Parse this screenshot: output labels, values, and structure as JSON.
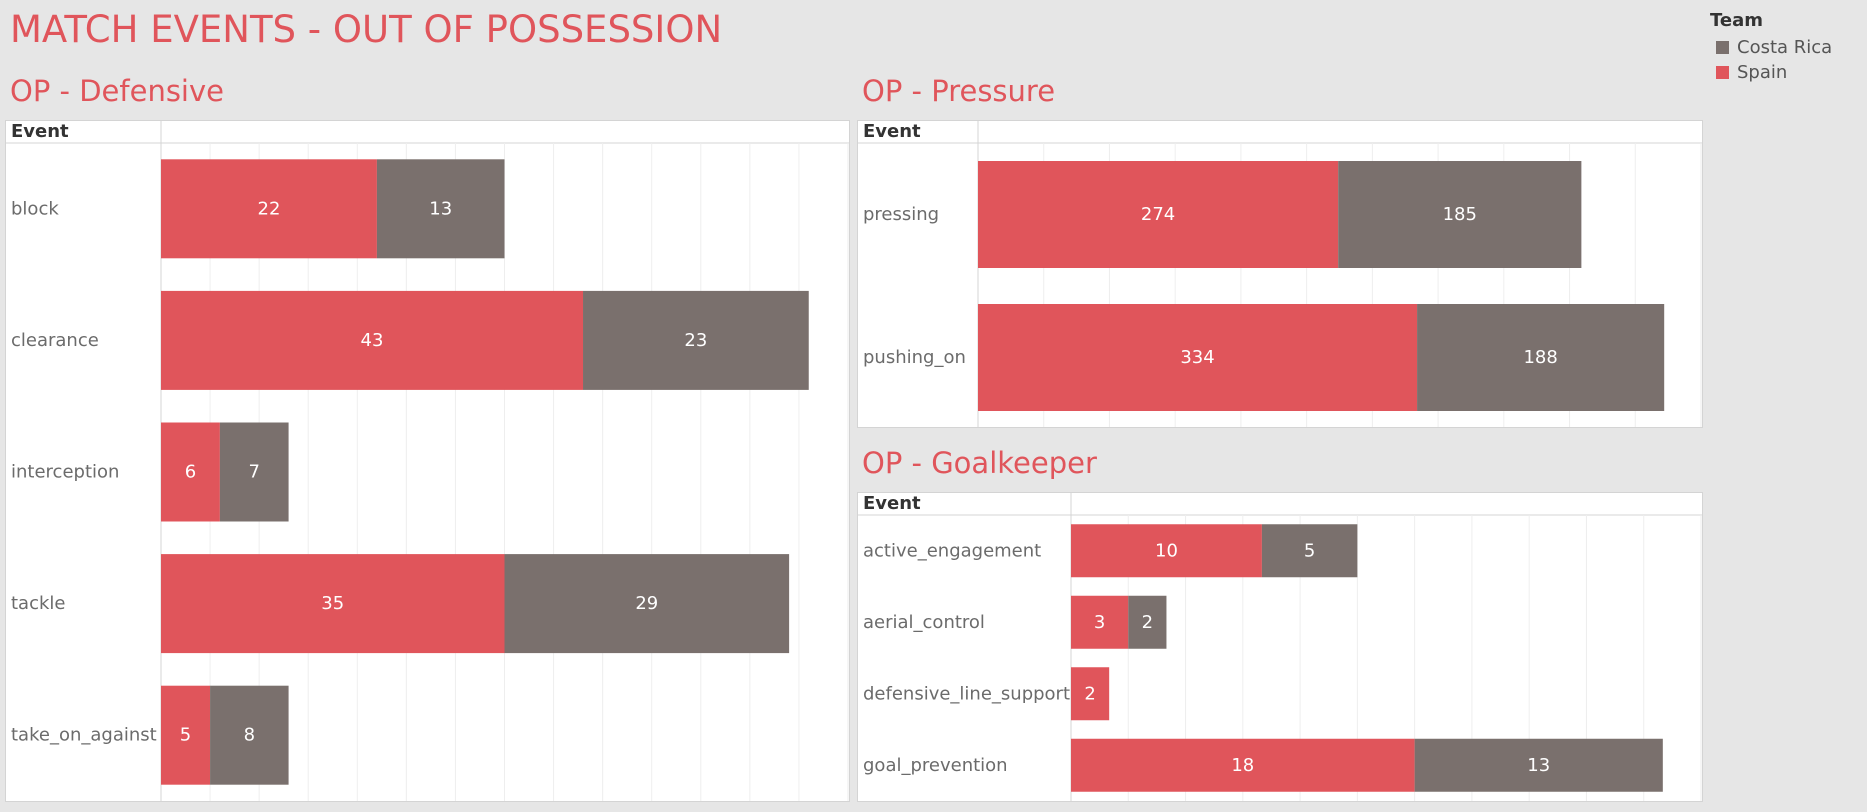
{
  "page": {
    "title": "MATCH EVENTS - OUT OF POSSESSION"
  },
  "legend": {
    "title": "Team",
    "items": [
      {
        "label": "Costa Rica",
        "color": "#7a706d"
      },
      {
        "label": "Spain",
        "color": "#e0555b"
      }
    ]
  },
  "colors": {
    "spain": "#e0555b",
    "costa_rica": "#7a706d",
    "accent": "#e0555b"
  },
  "chart_data": [
    {
      "id": "defensive",
      "type": "bar",
      "orientation": "horizontal",
      "stacked": true,
      "title": "OP - Defensive",
      "column_header": "Event",
      "xlim": [
        0,
        70
      ],
      "grid": true,
      "categories": [
        "block",
        "clearance",
        "interception",
        "tackle",
        "take_on_against"
      ],
      "series": [
        {
          "name": "Spain",
          "values": [
            22,
            43,
            6,
            35,
            5
          ]
        },
        {
          "name": "Costa Rica",
          "values": [
            13,
            23,
            7,
            29,
            8
          ]
        }
      ]
    },
    {
      "id": "pressure",
      "type": "bar",
      "orientation": "horizontal",
      "stacked": true,
      "title": "OP - Pressure",
      "column_header": "Event",
      "xlim": [
        0,
        550
      ],
      "grid": true,
      "categories": [
        "pressing",
        "pushing_on"
      ],
      "series": [
        {
          "name": "Spain",
          "values": [
            274,
            334
          ]
        },
        {
          "name": "Costa Rica",
          "values": [
            185,
            188
          ]
        }
      ]
    },
    {
      "id": "goalkeeper",
      "type": "bar",
      "orientation": "horizontal",
      "stacked": true,
      "title": "OP - Goalkeeper",
      "column_header": "Event",
      "xlim": [
        0,
        33
      ],
      "grid": true,
      "categories": [
        "active_engagement",
        "aerial_control",
        "defensive_line_support",
        "goal_prevention"
      ],
      "series": [
        {
          "name": "Spain",
          "values": [
            10,
            3,
            2,
            18
          ]
        },
        {
          "name": "Costa Rica",
          "values": [
            5,
            2,
            null,
            13
          ]
        }
      ]
    }
  ]
}
